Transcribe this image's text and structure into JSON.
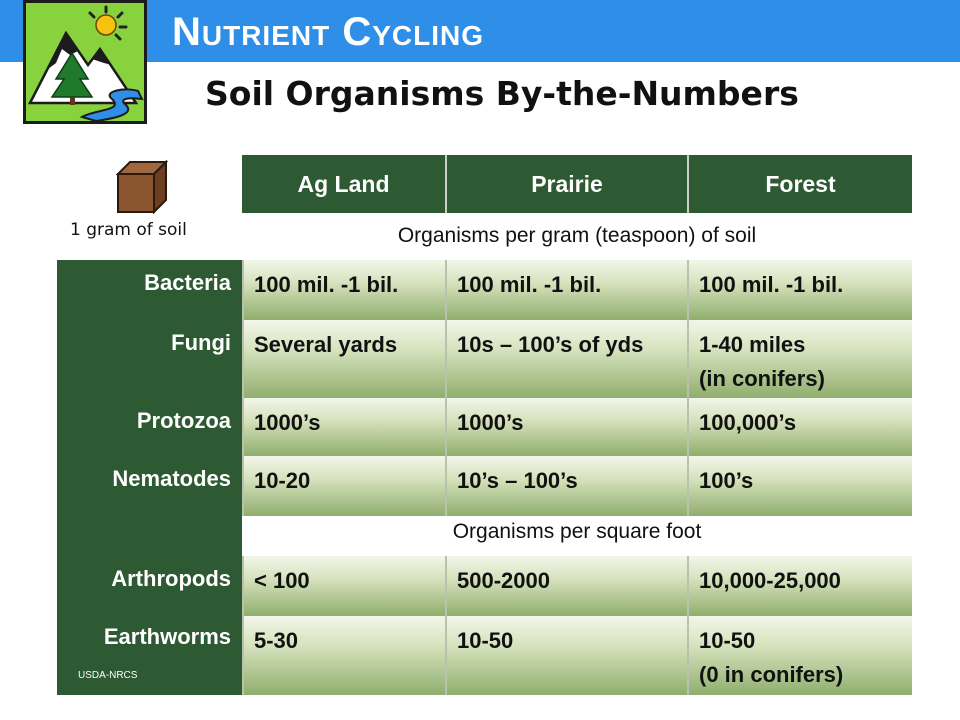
{
  "header": {
    "title": "Nutrient Cycling",
    "subtitle": "Soil Organisms By-the-Numbers"
  },
  "soil": {
    "caption": "1 gram of soil"
  },
  "table": {
    "columns": [
      "Ag Land",
      "Prairie",
      "Forest"
    ],
    "section_notes": {
      "per_gram": "Organisms per gram (teaspoon) of soil",
      "per_sqft": "Organisms per square foot"
    },
    "rows": [
      {
        "label": "Bacteria",
        "cells": [
          "100 mil. -1 bil.",
          "100 mil. -1 bil.",
          "100 mil. -1 bil."
        ]
      },
      {
        "label": "Fungi",
        "cells": [
          "Several yards",
          "10s – 100’s of yds",
          "1-40 miles\n(in conifers)"
        ]
      },
      {
        "label": "Protozoa",
        "cells": [
          "1000’s",
          "1000’s",
          "100,000’s"
        ]
      },
      {
        "label": "Nematodes",
        "cells": [
          "10-20",
          "10’s – 100’s",
          "100’s"
        ]
      },
      {
        "label": "Arthropods",
        "cells": [
          "< 100",
          "500-2000",
          "10,000-25,000"
        ]
      },
      {
        "label": "Earthworms",
        "cells": [
          "5-30",
          "10-50",
          "10-50\n(0 in conifers)"
        ]
      }
    ]
  },
  "credit": "USDA-NRCS"
}
